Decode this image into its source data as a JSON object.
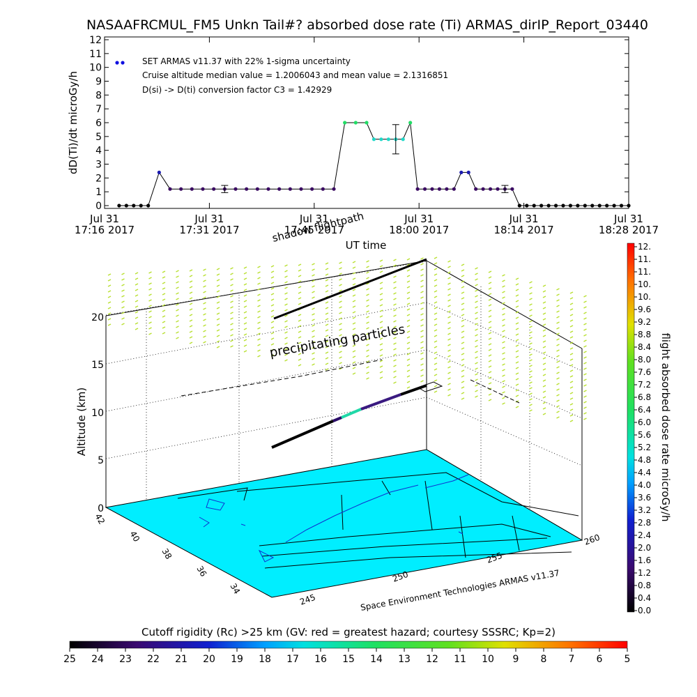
{
  "title": "NASAAFRCMUL_FM5 Unkn Tail#? absorbed dose rate (Ti) ARMAS_dirIP_Report_03440",
  "chart_data": [
    {
      "type": "line",
      "ylabel": "dD(Ti)/dt microGy/h",
      "xlabel": "UT time",
      "ylim": [
        0,
        12
      ],
      "yticks": [
        "0",
        "1",
        "2",
        "3",
        "4",
        "5",
        "6",
        "7",
        "8",
        "9",
        "10",
        "11",
        "12"
      ],
      "xticks": [
        {
          "l1": "Jul 31",
          "l2": "17:16 2017"
        },
        {
          "l1": "Jul 31",
          "l2": "17:31 2017"
        },
        {
          "l1": "Jul 31",
          "l2": "17:45 2017"
        },
        {
          "l1": "Jul 31",
          "l2": "18:00 2017"
        },
        {
          "l1": "Jul 31",
          "l2": "18:14 2017"
        },
        {
          "l1": "Jul 31",
          "l2": "18:28 2017"
        }
      ],
      "x_range_minutes_after_17_16": [
        0,
        72
      ],
      "legend": [
        "SET ARMAS v11.37 with 22% 1-sigma uncertainty",
        "Cruise altitude median value = 1.2006043 and mean value = 2.1316851",
        "D(si) -> D(ti) conversion factor C3 = 1.42929"
      ],
      "series": [
        {
          "x": [
            2,
            3,
            4,
            5,
            6,
            7.5,
            9,
            10.5,
            12,
            13.5,
            15,
            16.5,
            18,
            19.5,
            21,
            22.5,
            24,
            25.5,
            27,
            28.5,
            30,
            31.5,
            33,
            34.5,
            36,
            37,
            38,
            39,
            40,
            41,
            42,
            43,
            44,
            45,
            46,
            47,
            48,
            49,
            50,
            51,
            52,
            53,
            54,
            55,
            56,
            57,
            58,
            59,
            60,
            61,
            62,
            63,
            64,
            65,
            66,
            67,
            68,
            69,
            70,
            71,
            72
          ],
          "y": [
            0,
            0,
            0,
            0,
            0,
            2.4,
            1.2,
            1.2,
            1.2,
            1.2,
            1.2,
            1.2,
            1.2,
            1.2,
            1.2,
            1.2,
            1.2,
            1.2,
            1.2,
            1.2,
            1.2,
            1.2,
            6.0,
            6.0,
            6.0,
            4.8,
            4.8,
            4.8,
            4.8,
            4.8,
            6.0,
            1.2,
            1.2,
            1.2,
            1.2,
            1.2,
            1.2,
            2.4,
            2.4,
            1.2,
            1.2,
            1.2,
            1.2,
            1.2,
            1.2,
            0,
            0,
            0,
            0,
            0,
            0,
            0,
            0,
            0,
            0,
            0,
            0,
            0,
            0,
            0,
            0
          ]
        }
      ],
      "error_bars": [
        {
          "x": 16.5,
          "y": 1.2,
          "err": 0.26
        },
        {
          "x": 40,
          "y": 4.8,
          "err": 1.06
        },
        {
          "x": 55,
          "y": 1.2,
          "err": 0.26
        }
      ]
    },
    {
      "type": "3d-flight-map",
      "zlabel": "Altitude (km)",
      "ztick_labels": [
        "0",
        "5",
        "10",
        "15",
        "20"
      ],
      "lat_tick_labels": [
        "42",
        "40",
        "38",
        "36",
        "34"
      ],
      "lon_tick_labels": [
        "245",
        "250",
        "255",
        "260"
      ],
      "annotations": [
        "shadow flightpath",
        "precipitating particles"
      ],
      "footer": "Space Environment Technologies ARMAS v11.37",
      "colorbar_right": {
        "label": "flight absorbed dose rate microGy/h",
        "tick_labels": [
          "0.0",
          "0.4",
          "0.8",
          "1.2",
          "1.6",
          "2.0",
          "2.4",
          "2.8",
          "3.2",
          "3.6",
          "4.0",
          "4.4",
          "4.8",
          "5.2",
          "5.6",
          "6.0",
          "6.4",
          "6.8",
          "7.2",
          "7.6",
          "8.0",
          "8.4",
          "8.8",
          "9.2",
          "9.6",
          "10.",
          "10.",
          "11.",
          "11.",
          "12."
        ]
      },
      "colorbar_bottom": {
        "label": "Cutoff rigidity (Rc) >25 km (GV: red = greatest hazard; courtesy SSSRC; Kp=2)",
        "tick_labels": [
          "25",
          "24",
          "23",
          "22",
          "21",
          "20",
          "19",
          "18",
          "17",
          "16",
          "15",
          "14",
          "13",
          "12",
          "11",
          "10",
          "9",
          "8",
          "7",
          "6",
          "5"
        ]
      }
    }
  ],
  "colors": {
    "surface": "#00eeff",
    "marker_low": "#3a0a62",
    "marker_mid": "#1b1bb0",
    "marker_high": "#22dd66",
    "precip": "#b8e030"
  }
}
